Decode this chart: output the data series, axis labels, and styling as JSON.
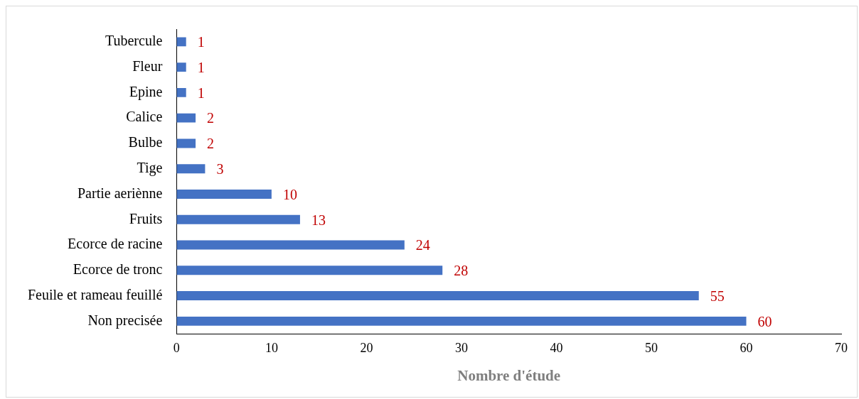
{
  "chart_data": {
    "type": "bar",
    "orientation": "horizontal",
    "categories": [
      "Tubercule",
      "Fleur",
      "Epine",
      "Calice",
      "Bulbe",
      "Tige",
      "Partie aeriènne",
      "Fruits",
      "Ecorce de racine",
      "Ecorce de tronc",
      "Feuile et rameau feuillé",
      "Non precisée"
    ],
    "values": [
      1,
      1,
      1,
      2,
      2,
      3,
      10,
      13,
      24,
      28,
      55,
      60
    ],
    "color": "#4472c4",
    "xlabel": "Nombre d'étude",
    "xlim": [
      0,
      70
    ],
    "xticks": [
      0,
      10,
      20,
      30,
      40,
      50,
      60,
      70
    ],
    "grid": false,
    "legend": false,
    "data_labels": true
  }
}
